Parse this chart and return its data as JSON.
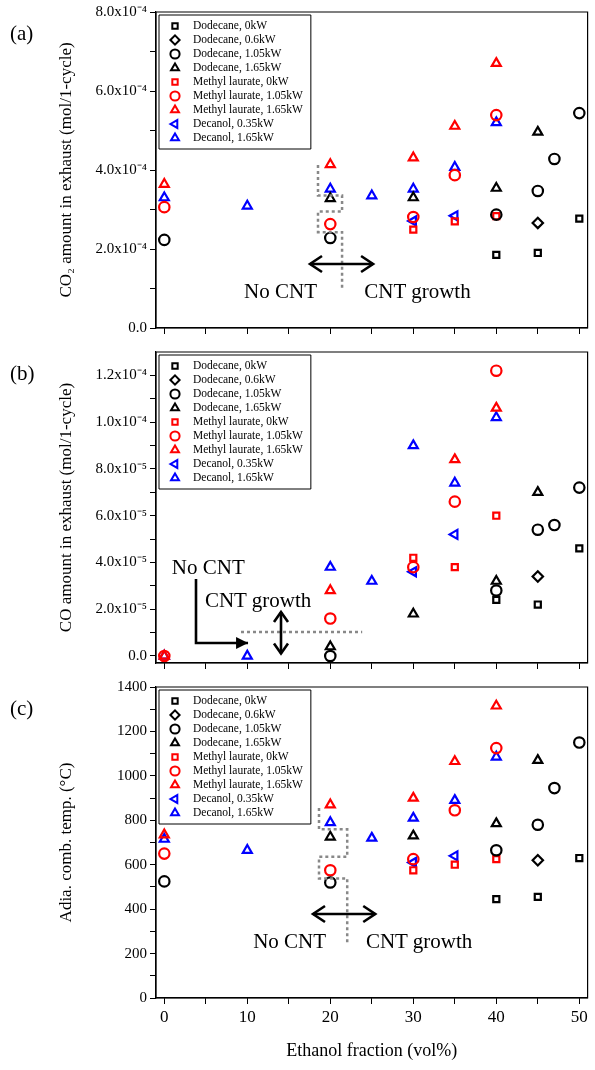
{
  "chart_data": [
    {
      "type": "scatter",
      "title": "(a)",
      "ylabel": "CO₂ amount in exhaust (mol/1-cycle)",
      "xlim": [
        -1,
        51
      ],
      "xticks": [
        0,
        {
          "value": 5,
          "label": null
        },
        10,
        {
          "value": 15,
          "label": null
        },
        20,
        {
          "value": 25,
          "label": null
        },
        30,
        {
          "value": 35,
          "label": null
        },
        40,
        {
          "value": 45,
          "label": null
        },
        50
      ],
      "ylim": [
        0,
        0.0008
      ],
      "yticks": [
        {
          "value": 0,
          "label": "0.0"
        },
        {
          "value": 0.0001,
          "label": null
        },
        {
          "value": 0.0002,
          "label": "2.0x10⁻⁴"
        },
        {
          "value": 0.0003,
          "label": null
        },
        {
          "value": 0.0004,
          "label": "4.0x10⁻⁴"
        },
        {
          "value": 0.0005,
          "label": null
        },
        {
          "value": 0.0006,
          "label": "6.0x10⁻⁴"
        },
        {
          "value": 0.0007,
          "label": null
        },
        {
          "value": 0.0008,
          "label": "8.0x10⁻⁴"
        }
      ],
      "tick_labels": "y",
      "legend": "top left",
      "annotations": [
        "No CNT",
        "CNT growth"
      ],
      "series": [
        {
          "name": "Dodecane, 0kW",
          "color": "#000000",
          "marker": "square",
          "x": [
            40,
            45,
            50
          ],
          "values": [
            0.000185,
            0.00019,
            0.000277
          ]
        },
        {
          "name": "Dodecane, 0.6kW",
          "color": "#000000",
          "marker": "diamond",
          "x": [
            45
          ],
          "values": [
            0.000266
          ]
        },
        {
          "name": "Dodecane, 1.05kW",
          "color": "#000000",
          "marker": "circle",
          "x": [
            0,
            20,
            40,
            45,
            47,
            50
          ],
          "values": [
            0.000223,
            0.000228,
            0.000287,
            0.000347,
            0.000428,
            0.000544
          ]
        },
        {
          "name": "Dodecane, 1.65kW",
          "color": "#000000",
          "marker": "triangle",
          "x": [
            20,
            30,
            40,
            45
          ],
          "values": [
            0.000328,
            0.00033,
            0.000354,
            0.000496
          ]
        },
        {
          "name": "Methyl laurate, 0kW",
          "color": "#ff0000",
          "marker": "square",
          "x": [
            30,
            35,
            40
          ],
          "values": [
            0.000249,
            0.00027,
            0.000283
          ]
        },
        {
          "name": "Methyl laurate, 1.05kW",
          "color": "#ff0000",
          "marker": "circle",
          "x": [
            0,
            20,
            30,
            35,
            40
          ],
          "values": [
            0.000306,
            0.000263,
            0.000281,
            0.000387,
            0.000539
          ]
        },
        {
          "name": "Methyl laurate, 1.65kW",
          "color": "#ff0000",
          "marker": "triangle",
          "x": [
            0,
            20,
            30,
            35,
            40
          ],
          "values": [
            0.000364,
            0.000414,
            0.000431,
            0.000511,
            0.00067
          ]
        },
        {
          "name": "Decanol, 0.35kW",
          "color": "#0000ff",
          "marker": "triangle-left",
          "x": [
            30,
            35
          ],
          "values": [
            0.000271,
            0.000284
          ]
        },
        {
          "name": "Decanol, 1.65kW",
          "color": "#0000ff",
          "marker": "triangle",
          "x": [
            0,
            10,
            20,
            25,
            30,
            35,
            40
          ],
          "values": [
            0.00033,
            0.000309,
            0.000352,
            0.000335,
            0.000352,
            0.000407,
            0.00052
          ]
        }
      ]
    },
    {
      "type": "scatter",
      "title": "(b)",
      "ylabel": "CO amount in exhaust (mol/1-cycle)",
      "xlim": [
        -1,
        51
      ],
      "xticks": [
        0,
        {
          "value": 5,
          "label": null
        },
        10,
        {
          "value": 15,
          "label": null
        },
        20,
        {
          "value": 25,
          "label": null
        },
        30,
        {
          "value": 35,
          "label": null
        },
        40,
        {
          "value": 45,
          "label": null
        },
        50
      ],
      "ylim": [
        -3e-06,
        0.00013
      ],
      "yticks": [
        {
          "value": 0,
          "label": "0.0"
        },
        {
          "value": 1e-05,
          "label": null
        },
        {
          "value": 2e-05,
          "label": "2.0x10⁻⁵"
        },
        {
          "value": 3e-05,
          "label": null
        },
        {
          "value": 4e-05,
          "label": "4.0x10⁻⁵"
        },
        {
          "value": 5e-05,
          "label": null
        },
        {
          "value": 6e-05,
          "label": "6.0x10⁻⁵"
        },
        {
          "value": 7e-05,
          "label": null
        },
        {
          "value": 8e-05,
          "label": "8.0x10⁻⁵"
        },
        {
          "value": 9e-05,
          "label": null
        },
        {
          "value": 0.0001,
          "label": "1.0x10⁻⁴"
        },
        {
          "value": 0.00011,
          "label": null
        },
        {
          "value": 0.00012,
          "label": "1.2x10⁻⁴"
        }
      ],
      "tick_labels": "y",
      "legend": "top left",
      "annotations": [
        "No CNT",
        "CNT growth"
      ],
      "series": [
        {
          "name": "Dodecane, 0kW",
          "color": "#000000",
          "marker": "square",
          "x": [
            40,
            45,
            50
          ],
          "values": [
            2.4e-05,
            2.2e-05,
            4.6e-05
          ]
        },
        {
          "name": "Dodecane, 0.6kW",
          "color": "#000000",
          "marker": "diamond",
          "x": [
            45
          ],
          "values": [
            3.4e-05
          ]
        },
        {
          "name": "Dodecane, 1.05kW",
          "color": "#000000",
          "marker": "circle",
          "x": [
            20,
            40,
            45,
            47,
            50
          ],
          "values": [
            0,
            2.8e-05,
            5.4e-05,
            5.6e-05,
            7.2e-05
          ]
        },
        {
          "name": "Dodecane, 1.65kW",
          "color": "#000000",
          "marker": "triangle",
          "x": [
            20,
            30,
            40,
            45
          ],
          "values": [
            4e-06,
            1.8e-05,
            3.2e-05,
            7e-05
          ]
        },
        {
          "name": "Methyl laurate, 0kW",
          "color": "#ff0000",
          "marker": "square",
          "x": [
            30,
            35,
            40
          ],
          "values": [
            4.2e-05,
            3.8e-05,
            6e-05
          ]
        },
        {
          "name": "Methyl laurate, 1.05kW",
          "color": "#ff0000",
          "marker": "circle",
          "x": [
            0,
            20,
            30,
            35,
            40
          ],
          "values": [
            0,
            1.6e-05,
            3.8e-05,
            6.6e-05,
            0.000122
          ]
        },
        {
          "name": "Methyl laurate, 1.65kW",
          "color": "#ff0000",
          "marker": "triangle",
          "x": [
            0,
            20,
            35,
            40
          ],
          "values": [
            0,
            2.8e-05,
            8.4e-05,
            0.000106
          ]
        },
        {
          "name": "Decanol, 0.35kW",
          "color": "#0000ff",
          "marker": "triangle-left",
          "x": [
            30,
            35
          ],
          "values": [
            3.6e-05,
            5.2e-05
          ]
        },
        {
          "name": "Decanol, 1.65kW",
          "color": "#0000ff",
          "marker": "triangle",
          "x": [
            0,
            10,
            20,
            25,
            30,
            35,
            40
          ],
          "values": [
            0,
            0,
            3.8e-05,
            3.2e-05,
            9e-05,
            7.4e-05,
            0.000102
          ]
        }
      ]
    },
    {
      "type": "scatter",
      "title": "(c)",
      "xlabel": "Ethanol fraction (vol%)",
      "ylabel": "Adia. comb. temp. (°C)",
      "xlim": [
        -1,
        51
      ],
      "xticks": [
        0,
        {
          "value": 5,
          "label": null
        },
        10,
        {
          "value": 15,
          "label": null
        },
        20,
        {
          "value": 25,
          "label": null
        },
        30,
        {
          "value": 35,
          "label": null
        },
        40,
        {
          "value": 45,
          "label": null
        },
        50
      ],
      "ylim": [
        0,
        1400
      ],
      "yticks": [
        0,
        {
          "value": 100,
          "label": null
        },
        200,
        {
          "value": 300,
          "label": null
        },
        400,
        {
          "value": 500,
          "label": null
        },
        600,
        {
          "value": 700,
          "label": null
        },
        800,
        {
          "value": 900,
          "label": null
        },
        1000,
        {
          "value": 1100,
          "label": null
        },
        1200,
        {
          "value": 1300,
          "label": null
        },
        1400
      ],
      "legend": "top left",
      "annotations": [
        "No CNT",
        "CNT growth"
      ],
      "series": [
        {
          "name": "Dodecane, 0kW",
          "color": "#000000",
          "marker": "square",
          "x": [
            40,
            45,
            50
          ],
          "values": [
            445,
            455,
            630
          ]
        },
        {
          "name": "Dodecane, 0.6kW",
          "color": "#000000",
          "marker": "diamond",
          "x": [
            45
          ],
          "values": [
            620
          ]
        },
        {
          "name": "Dodecane, 1.05kW",
          "color": "#000000",
          "marker": "circle",
          "x": [
            0,
            20,
            40,
            45,
            47,
            50
          ],
          "values": [
            525,
            520,
            665,
            780,
            945,
            1150
          ]
        },
        {
          "name": "Dodecane, 1.65kW",
          "color": "#000000",
          "marker": "triangle",
          "x": [
            20,
            30,
            40,
            45
          ],
          "values": [
            725,
            730,
            785,
            1070
          ]
        },
        {
          "name": "Methyl laurate, 0kW",
          "color": "#ff0000",
          "marker": "square",
          "x": [
            30,
            35,
            40
          ],
          "values": [
            575,
            600,
            625
          ]
        },
        {
          "name": "Methyl laurate, 1.05kW",
          "color": "#ff0000",
          "marker": "circle",
          "x": [
            0,
            20,
            30,
            35,
            40
          ],
          "values": [
            650,
            575,
            625,
            845,
            1125
          ]
        },
        {
          "name": "Methyl laurate, 1.65kW",
          "color": "#ff0000",
          "marker": "triangle",
          "x": [
            0,
            20,
            30,
            35,
            40
          ],
          "values": [
            735,
            870,
            900,
            1065,
            1315
          ]
        },
        {
          "name": "Decanol, 0.35kW",
          "color": "#0000ff",
          "marker": "triangle-left",
          "x": [
            30,
            35
          ],
          "values": [
            610,
            640
          ]
        },
        {
          "name": "Decanol, 1.65kW",
          "color": "#0000ff",
          "marker": "triangle",
          "x": [
            0,
            10,
            20,
            25,
            30,
            35,
            40
          ],
          "values": [
            715,
            665,
            790,
            720,
            810,
            890,
            1085
          ]
        }
      ]
    }
  ]
}
